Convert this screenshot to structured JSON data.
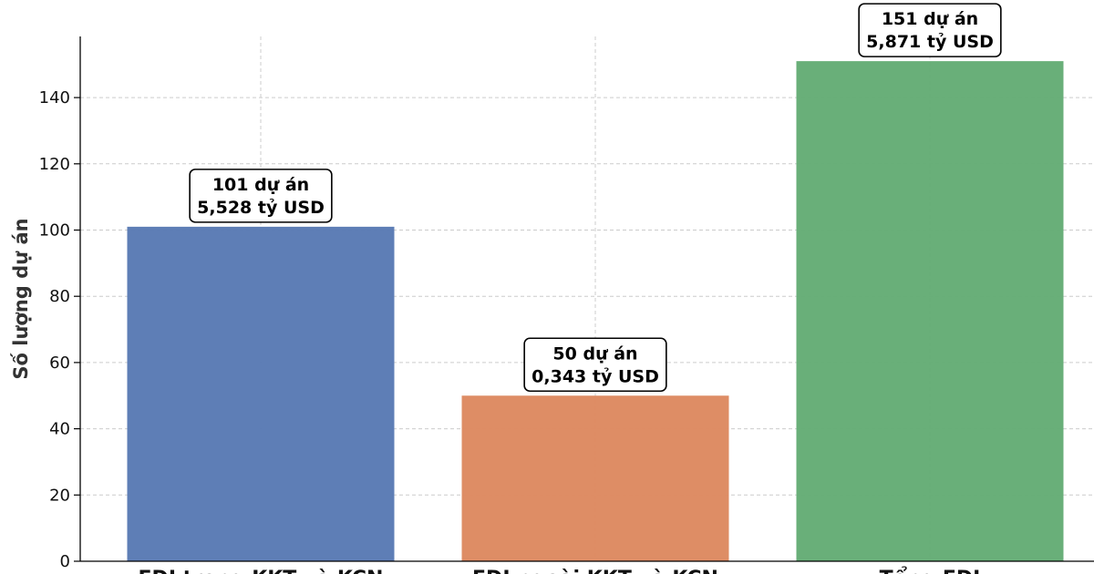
{
  "chart_data": {
    "type": "bar",
    "categories": [
      "FDI trong KKT và KCN",
      "FDI ngoài KKT và KCN",
      "Tổng FDI"
    ],
    "values": [
      101,
      50,
      151
    ],
    "data_labels": [
      [
        "101 dự án",
        "5,528 tỷ USD"
      ],
      [
        "50 dự án",
        "0,343 tỷ USD"
      ],
      [
        "151 dự án",
        "5,871 tỷ USD"
      ]
    ],
    "colors": [
      "#5b7bb5",
      "#dd8b62",
      "#66ad76"
    ],
    "ylabel": "Số lượng dự án",
    "xlabel": "",
    "ylim": [
      0,
      160
    ],
    "yticks": [
      0,
      20,
      40,
      60,
      80,
      100,
      120,
      140
    ],
    "grid": true,
    "legend": "none"
  }
}
